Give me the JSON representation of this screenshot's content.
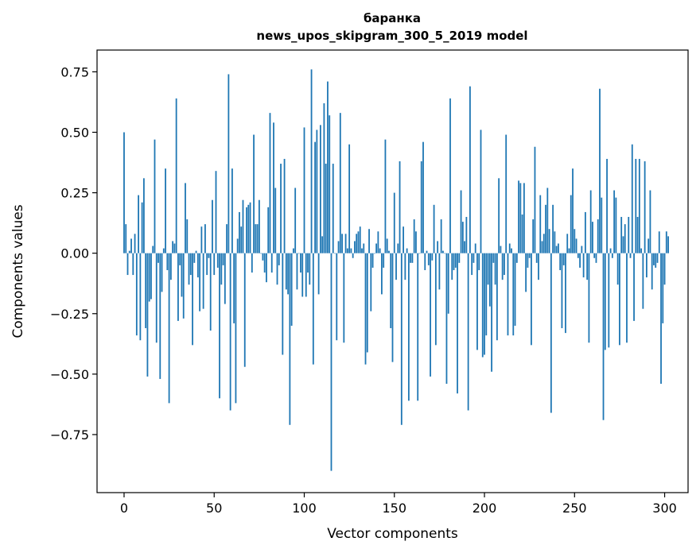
{
  "chart_data": {
    "type": "bar",
    "title": "баранка",
    "subtitle": "news_upos_skipgram_300_5_2019 model",
    "xlabel": "Vector components",
    "ylabel": "Components values",
    "xlim": [
      -15,
      313
    ],
    "ylim": [
      -0.99,
      0.84
    ],
    "xticks": [
      0,
      50,
      100,
      150,
      200,
      250,
      300
    ],
    "xtick_labels": [
      "0",
      "50",
      "100",
      "150",
      "200",
      "250",
      "300"
    ],
    "yticks": [
      0.75,
      0.5,
      0.25,
      0.0,
      -0.25,
      -0.5,
      -0.75
    ],
    "ytick_labels": [
      "0.75",
      "0.50",
      "0.25",
      "0.00",
      "−0.25",
      "−0.50",
      "−0.75"
    ],
    "grid": false,
    "legend": "none",
    "bar_color": "#1f77b4",
    "series": [
      {
        "values": [
          0.5,
          0.12,
          -0.09,
          0.01,
          0.06,
          -0.09,
          0.08,
          -0.34,
          0.24,
          -0.36,
          0.21,
          0.31,
          -0.31,
          -0.51,
          -0.2,
          -0.19,
          0.03,
          0.47,
          -0.37,
          -0.04,
          -0.52,
          -0.16,
          0.02,
          0.35,
          -0.07,
          -0.62,
          -0.11,
          0.05,
          0.04,
          0.64,
          -0.28,
          -0.05,
          -0.18,
          -0.27,
          0.29,
          0.14,
          -0.13,
          -0.09,
          -0.38,
          -0.04,
          0.01,
          -0.1,
          -0.24,
          0.11,
          -0.23,
          0.12,
          -0.09,
          -0.02,
          -0.32,
          0.22,
          -0.09,
          0.34,
          -0.06,
          -0.6,
          -0.13,
          -0.05,
          -0.21,
          0.12,
          0.74,
          -0.65,
          0.35,
          -0.29,
          -0.62,
          0.06,
          0.17,
          0.11,
          0.22,
          -0.47,
          0.19,
          0.2,
          0.21,
          -0.08,
          0.49,
          0.12,
          0.12,
          0.22,
          0.0,
          -0.03,
          -0.08,
          -0.12,
          0.19,
          0.58,
          -0.08,
          0.54,
          0.27,
          -0.13,
          -0.05,
          0.37,
          -0.42,
          0.39,
          -0.15,
          -0.17,
          -0.71,
          -0.3,
          0.02,
          0.27,
          -0.15,
          0.0,
          -0.08,
          -0.18,
          0.52,
          -0.18,
          -0.08,
          -0.13,
          0.76,
          -0.46,
          0.46,
          0.51,
          -0.17,
          0.53,
          0.07,
          0.62,
          0.37,
          0.71,
          0.57,
          -0.9,
          0.37,
          0.0,
          -0.36,
          0.05,
          0.58,
          0.08,
          -0.37,
          0.08,
          0.02,
          0.45,
          0.02,
          -0.02,
          0.05,
          0.08,
          0.09,
          0.11,
          0.02,
          0.04,
          -0.46,
          -0.41,
          0.1,
          -0.24,
          -0.06,
          0.0,
          0.04,
          0.09,
          0.02,
          -0.17,
          -0.06,
          0.47,
          0.06,
          0.01,
          -0.31,
          -0.45,
          0.25,
          -0.11,
          0.04,
          0.38,
          -0.71,
          0.11,
          -0.11,
          0.02,
          -0.61,
          -0.04,
          -0.04,
          0.14,
          0.09,
          -0.61,
          0.0,
          0.38,
          0.46,
          -0.07,
          0.01,
          -0.05,
          -0.51,
          -0.03,
          0.2,
          -0.38,
          0.05,
          -0.15,
          0.14,
          0.01,
          0.0,
          -0.54,
          -0.25,
          0.64,
          -0.11,
          -0.07,
          -0.06,
          -0.58,
          -0.04,
          0.26,
          0.13,
          0.05,
          0.15,
          -0.65,
          0.69,
          -0.09,
          -0.04,
          0.04,
          -0.4,
          -0.07,
          0.51,
          -0.43,
          -0.42,
          -0.34,
          -0.13,
          -0.22,
          -0.49,
          -0.04,
          -0.13,
          -0.36,
          0.31,
          0.03,
          -0.11,
          -0.09,
          0.49,
          -0.34,
          0.04,
          0.02,
          -0.34,
          -0.3,
          -0.04,
          0.3,
          0.29,
          0.16,
          0.29,
          -0.16,
          -0.06,
          -0.02,
          -0.38,
          0.14,
          0.44,
          -0.04,
          -0.11,
          0.24,
          0.05,
          0.08,
          0.2,
          0.27,
          0.1,
          -0.66,
          0.2,
          0.09,
          0.03,
          0.04,
          -0.07,
          -0.31,
          -0.05,
          -0.33,
          0.08,
          0.02,
          0.24,
          0.35,
          0.1,
          0.06,
          -0.02,
          -0.06,
          0.03,
          -0.1,
          0.17,
          -0.11,
          -0.37,
          0.26,
          0.13,
          -0.02,
          -0.04,
          0.14,
          0.68,
          0.23,
          -0.69,
          -0.4,
          0.39,
          -0.39,
          0.02,
          -0.02,
          0.26,
          0.23,
          -0.13,
          -0.38,
          0.15,
          0.07,
          0.12,
          -0.37,
          0.15,
          -0.02,
          0.45,
          -0.28,
          0.39,
          0.15,
          0.39,
          0.02,
          -0.23,
          0.38,
          -0.1,
          0.06,
          0.26,
          -0.15,
          -0.05,
          -0.06,
          -0.04,
          0.09,
          -0.54,
          -0.29,
          -0.13,
          0.09,
          0.07
        ]
      }
    ]
  }
}
